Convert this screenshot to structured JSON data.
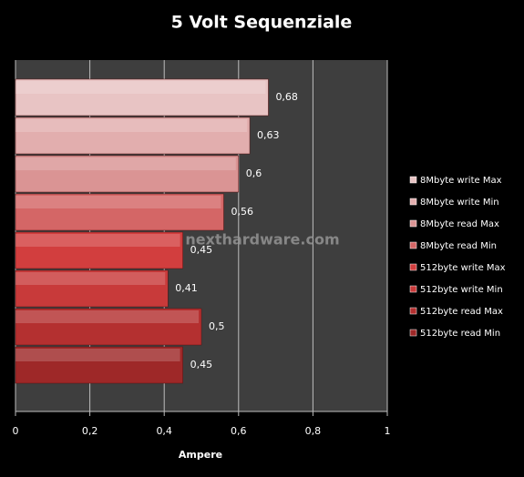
{
  "chart_data": {
    "type": "bar",
    "orientation": "horizontal",
    "title": "5 Volt Sequenziale",
    "xlabel": "Ampere",
    "watermark": "nexthardware.com",
    "xlim": [
      0,
      1
    ],
    "xticks": [
      0,
      {
        "value": 0.2,
        "label": "0,2"
      },
      {
        "value": 0.4,
        "label": "0,4"
      },
      {
        "value": 0.6,
        "label": "0,6"
      },
      {
        "value": 0.8,
        "label": "0,8"
      },
      1
    ],
    "grid": true,
    "legend": "right",
    "series": [
      {
        "name": "8Mbyte write  Max",
        "color": "#e8c4c4",
        "values": [
          0.68
        ],
        "value_labels": [
          "0,68"
        ]
      },
      {
        "name": "8Mbyte write  Min",
        "color": "#e2aeae",
        "values": [
          0.63
        ],
        "value_labels": [
          "0,63"
        ]
      },
      {
        "name": "8Mbyte read Max",
        "color": "#da9494",
        "values": [
          0.6
        ],
        "value_labels": [
          "0,6"
        ]
      },
      {
        "name": "8Mbyte read Min",
        "color": "#d46666",
        "values": [
          0.56
        ],
        "value_labels": [
          "0,56"
        ]
      },
      {
        "name": "512byte write Max",
        "color": "#d23e3e",
        "values": [
          0.45
        ],
        "value_labels": [
          "0,45"
        ]
      },
      {
        "name": "512byte write Min",
        "color": "#c83a3a",
        "values": [
          0.41
        ],
        "value_labels": [
          "0,41"
        ]
      },
      {
        "name": "512byte read Max",
        "color": "#b43030",
        "values": [
          0.5
        ],
        "value_labels": [
          "0,5"
        ]
      },
      {
        "name": "512byte read Min",
        "color": "#9e2828",
        "values": [
          0.45
        ],
        "value_labels": [
          "0,45"
        ]
      }
    ]
  }
}
